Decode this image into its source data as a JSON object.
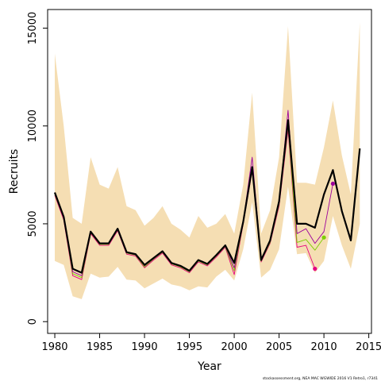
{
  "chart_data": {
    "type": "line",
    "title": "",
    "xlabel": "Year",
    "ylabel": "Recruits",
    "xlim": [
      1979.2,
      2015.3
    ],
    "ylim": [
      -600,
      15950
    ],
    "x_ticks": [
      1980,
      1985,
      1990,
      1995,
      2000,
      2005,
      2010,
      2015
    ],
    "y_ticks": [
      0,
      5000,
      10000,
      15000
    ],
    "band_color": "#F5DEB3",
    "confidence_band": {
      "x": [
        1980,
        1981,
        1982,
        1983,
        1984,
        1985,
        1986,
        1987,
        1988,
        1989,
        1990,
        1991,
        1992,
        1993,
        1994,
        1995,
        1996,
        1997,
        1998,
        1999,
        2000,
        2001,
        2002,
        2003,
        2004,
        2005,
        2006,
        2007,
        2008,
        2009,
        2010,
        2011,
        2012,
        2013,
        2014
      ],
      "upper": [
        13700,
        10000,
        5300,
        5000,
        8400,
        7000,
        6800,
        7900,
        5900,
        5700,
        4900,
        5300,
        5900,
        5000,
        4700,
        4300,
        5400,
        4800,
        5000,
        5500,
        4500,
        7000,
        11700,
        4500,
        5700,
        8400,
        15100,
        7100,
        7100,
        7000,
        8900,
        11300,
        8500,
        6500,
        15300
      ],
      "lower": [
        3100,
        2900,
        1300,
        1150,
        2450,
        2250,
        2300,
        2800,
        2150,
        2100,
        1700,
        1950,
        2200,
        1900,
        1800,
        1600,
        1800,
        1750,
        2300,
        2650,
        2100,
        3700,
        6100,
        2250,
        2650,
        3700,
        6900,
        3450,
        3500,
        2500,
        3100,
        5400,
        3900,
        2700,
        5000
      ]
    },
    "series": [
      {
        "color": "#000000",
        "x": [
          1980,
          1981,
          1982,
          1983,
          1984,
          1985,
          1986,
          1987,
          1988,
          1989,
          1990,
          1991,
          1992,
          1993,
          1994,
          1995,
          1996,
          1997,
          1998,
          1999,
          2000,
          2001,
          2002,
          2003,
          2004,
          2005,
          2006,
          2007,
          2008,
          2009,
          2010,
          2011,
          2012,
          2013,
          2014
        ],
        "values": [
          6600,
          5350,
          2700,
          2500,
          4600,
          4000,
          4000,
          4750,
          3550,
          3450,
          2900,
          3250,
          3600,
          3000,
          2850,
          2600,
          3150,
          2950,
          3400,
          3900,
          3000,
          5100,
          7900,
          3150,
          4150,
          6150,
          10300,
          5000,
          5000,
          4800,
          6500,
          7750,
          5650,
          4150,
          8850
        ]
      },
      {
        "color": "#E6007E",
        "x": [
          1980,
          1981,
          1982,
          1983,
          1984,
          1985,
          1986,
          1987,
          1988,
          1989,
          1990,
          1991,
          1992,
          1993,
          1994,
          1995,
          1996,
          1997,
          1998,
          1999,
          2000,
          2001,
          2002,
          2003,
          2004,
          2005,
          2006,
          2007,
          2008,
          2009
        ],
        "values": [
          6450,
          5200,
          2350,
          2150,
          4500,
          3900,
          3900,
          4650,
          3450,
          3350,
          2750,
          3150,
          3500,
          2900,
          2750,
          2500,
          3050,
          2850,
          3300,
          3800,
          2400,
          5000,
          7700,
          3050,
          4000,
          5900,
          9800,
          3800,
          3900,
          2700
        ]
      },
      {
        "color": "#7CCD00",
        "x": [
          1980,
          1981,
          1982,
          1983,
          1984,
          1985,
          1986,
          1987,
          1988,
          1989,
          1990,
          1991,
          1992,
          1993,
          1994,
          1995,
          1996,
          1997,
          1998,
          1999,
          2000,
          2001,
          2002,
          2003,
          2004,
          2005,
          2006,
          2007,
          2008,
          2009,
          2010
        ],
        "values": [
          6500,
          5300,
          2450,
          2250,
          4550,
          3950,
          3950,
          4700,
          3500,
          3400,
          2800,
          3200,
          3550,
          2950,
          2800,
          2550,
          3100,
          2900,
          3350,
          3850,
          2600,
          5050,
          7800,
          3100,
          4050,
          6000,
          10000,
          4050,
          4200,
          3650,
          4300
        ]
      },
      {
        "color": "#9B009B",
        "x": [
          1980,
          1981,
          1982,
          1983,
          1984,
          1985,
          1986,
          1987,
          1988,
          1989,
          1990,
          1991,
          1992,
          1993,
          1994,
          1995,
          1996,
          1997,
          1998,
          1999,
          2000,
          2001,
          2002,
          2003,
          2004,
          2005,
          2006,
          2007,
          2008,
          2009,
          2010,
          2011
        ],
        "values": [
          6550,
          5350,
          2550,
          2350,
          4580,
          3980,
          3980,
          4720,
          3520,
          3420,
          2850,
          3220,
          3580,
          2970,
          2830,
          2580,
          3130,
          2930,
          3380,
          3880,
          2750,
          5100,
          8400,
          3200,
          4100,
          6100,
          10800,
          4500,
          4750,
          4000,
          4600,
          7050
        ]
      }
    ],
    "end_points": [
      {
        "color": "#E6007E",
        "x": 2009,
        "y": 2700
      },
      {
        "color": "#7CCD00",
        "x": 2010,
        "y": 4300
      },
      {
        "color": "#9B009B",
        "x": 2011,
        "y": 7050
      }
    ],
    "grid": false,
    "legend": "none"
  },
  "footer": {
    "credit": "stockassessment.org, NEA MAC WGWIDE 2016 V1 Retro1, r7341"
  }
}
